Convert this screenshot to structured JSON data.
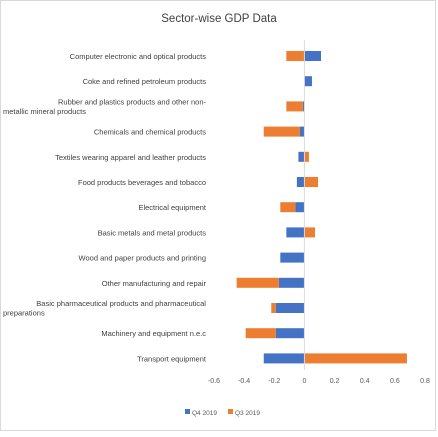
{
  "chart_data": {
    "type": "bar",
    "orientation": "horizontal",
    "stacked": true,
    "title": "Sector-wise GDP Data",
    "categories": [
      "Computer electronic and optical products",
      "Coke and refined petroleum products",
      "Rubber and plastics products and other non-metallic mineral products",
      "Chemicals and chemical products",
      "Textiles wearing apparel and leather products",
      "Food products beverages and tobacco",
      "Electrical equipment",
      "Basic metals and metal products",
      "Wood and paper products and printing",
      "Other manufacturing and repair",
      "Basic pharmaceutical products and pharmaceutical preparations",
      "Machinery and equipment n.e.c",
      "Transport equipment"
    ],
    "category_lines": [
      [
        "Computer electronic and optical products"
      ],
      [
        "Coke and refined petroleum products"
      ],
      [
        "Rubber and plastics products and other non-",
        "metallic mineral products"
      ],
      [
        "Chemicals and chemical products"
      ],
      [
        "Textiles wearing apparel and leather products"
      ],
      [
        "Food products beverages and tobacco"
      ],
      [
        "Electrical equipment"
      ],
      [
        "Basic metals and metal products"
      ],
      [
        "Wood and paper products and printing"
      ],
      [
        "Other manufacturing and repair"
      ],
      [
        "Basic pharmaceutical products and pharmaceutical",
        "preparations"
      ],
      [
        "Machinery and equipment n.e.c"
      ],
      [
        "Transport equipment"
      ]
    ],
    "series": [
      {
        "name": "Q4 2019",
        "color": "#4472C4",
        "values": [
          0.11,
          0.05,
          -0.01,
          -0.03,
          -0.04,
          -0.05,
          -0.06,
          -0.12,
          -0.16,
          -0.17,
          -0.19,
          -0.19,
          -0.27
        ]
      },
      {
        "name": "Q3 2019",
        "color": "#ED7D31",
        "values": [
          -0.12,
          0.0,
          -0.11,
          -0.24,
          0.03,
          0.09,
          -0.1,
          0.07,
          0.0,
          -0.28,
          -0.03,
          -0.2,
          0.68
        ]
      }
    ],
    "xlim": [
      -0.6,
      0.8
    ],
    "xticks": [
      "-0.6",
      "-0.4",
      "-0.2",
      "0",
      "0.2",
      "0.4",
      "0.6",
      "0.8"
    ],
    "xlabel": "",
    "ylabel": "",
    "grid": false,
    "legend": "bottom"
  }
}
